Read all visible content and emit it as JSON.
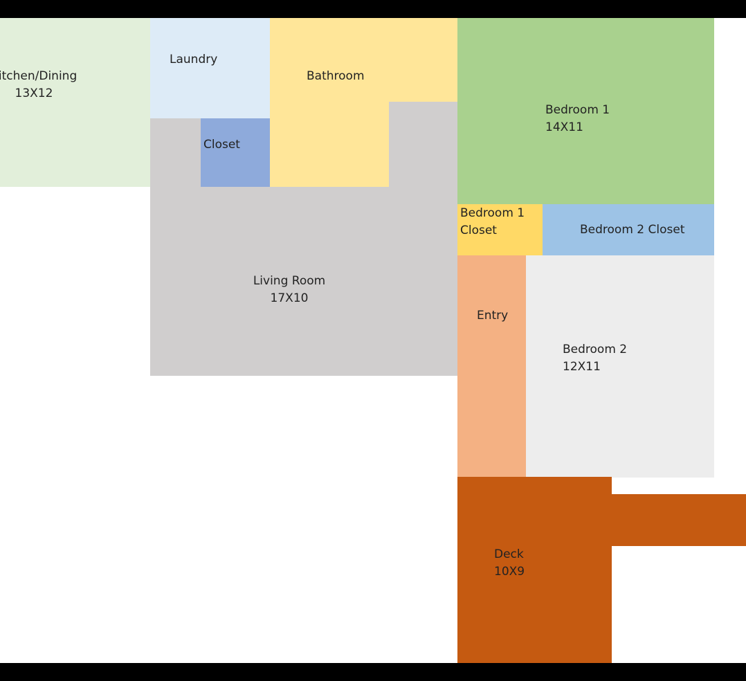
{
  "rooms": {
    "kitchen": {
      "name": "Kitchen/Dining",
      "size": "13X12",
      "color": "#e2efda"
    },
    "laundry": {
      "name": "Laundry",
      "color": "#ddebf7"
    },
    "bathroom": {
      "name": "Bathroom",
      "color": "#ffe699"
    },
    "closet": {
      "name": "Closet",
      "color": "#8eaadb"
    },
    "bedroom1": {
      "name": "Bedroom 1",
      "size": "14X11",
      "color": "#a9d18e"
    },
    "bedroom1_closet": {
      "line1": "Bedroom 1",
      "line2": "Closet",
      "color": "#ffd966"
    },
    "bedroom2_closet": {
      "name": "Bedroom 2 Closet",
      "color": "#9dc3e6"
    },
    "living_room": {
      "name": "Living Room",
      "size": "17X10",
      "color": "#d0cece"
    },
    "entry": {
      "name": "Entry",
      "color": "#f4b183"
    },
    "bedroom2": {
      "name": "Bedroom 2",
      "size": "12X11",
      "color": "#ededed"
    },
    "deck": {
      "name": "Deck",
      "size": "10X9",
      "color": "#c55a11"
    }
  }
}
